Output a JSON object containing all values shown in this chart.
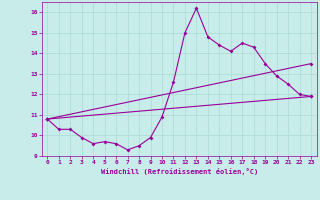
{
  "xlabel": "Windchill (Refroidissement éolien,°C)",
  "background_color": "#c8ecea",
  "grid_color": "#b0ddd8",
  "line_color": "#990099",
  "xlim": [
    -0.5,
    23.5
  ],
  "ylim": [
    9,
    16.5
  ],
  "xticks": [
    0,
    1,
    2,
    3,
    4,
    5,
    6,
    7,
    8,
    9,
    10,
    11,
    12,
    13,
    14,
    15,
    16,
    17,
    18,
    19,
    20,
    21,
    22,
    23
  ],
  "yticks": [
    9,
    10,
    11,
    12,
    13,
    14,
    15,
    16
  ],
  "line1_x": [
    0,
    1,
    2,
    3,
    4,
    5,
    6,
    7,
    8,
    9,
    10,
    11,
    12,
    13,
    14,
    15,
    16,
    17,
    18,
    19,
    20,
    21,
    22,
    23
  ],
  "line1_y": [
    10.8,
    10.3,
    10.3,
    9.9,
    9.6,
    9.7,
    9.6,
    9.3,
    9.5,
    9.9,
    10.9,
    12.6,
    15.0,
    16.2,
    14.8,
    14.4,
    14.1,
    14.5,
    14.3,
    13.5,
    12.9,
    12.5,
    12.0,
    11.9
  ],
  "line2_x": [
    0,
    23
  ],
  "line2_y": [
    10.8,
    11.9
  ],
  "line3_x": [
    0,
    23
  ],
  "line3_y": [
    10.8,
    13.5
  ],
  "tick_fontsize": 4.5,
  "xlabel_fontsize": 5.0,
  "marker_size": 2.0,
  "line_width": 0.8
}
